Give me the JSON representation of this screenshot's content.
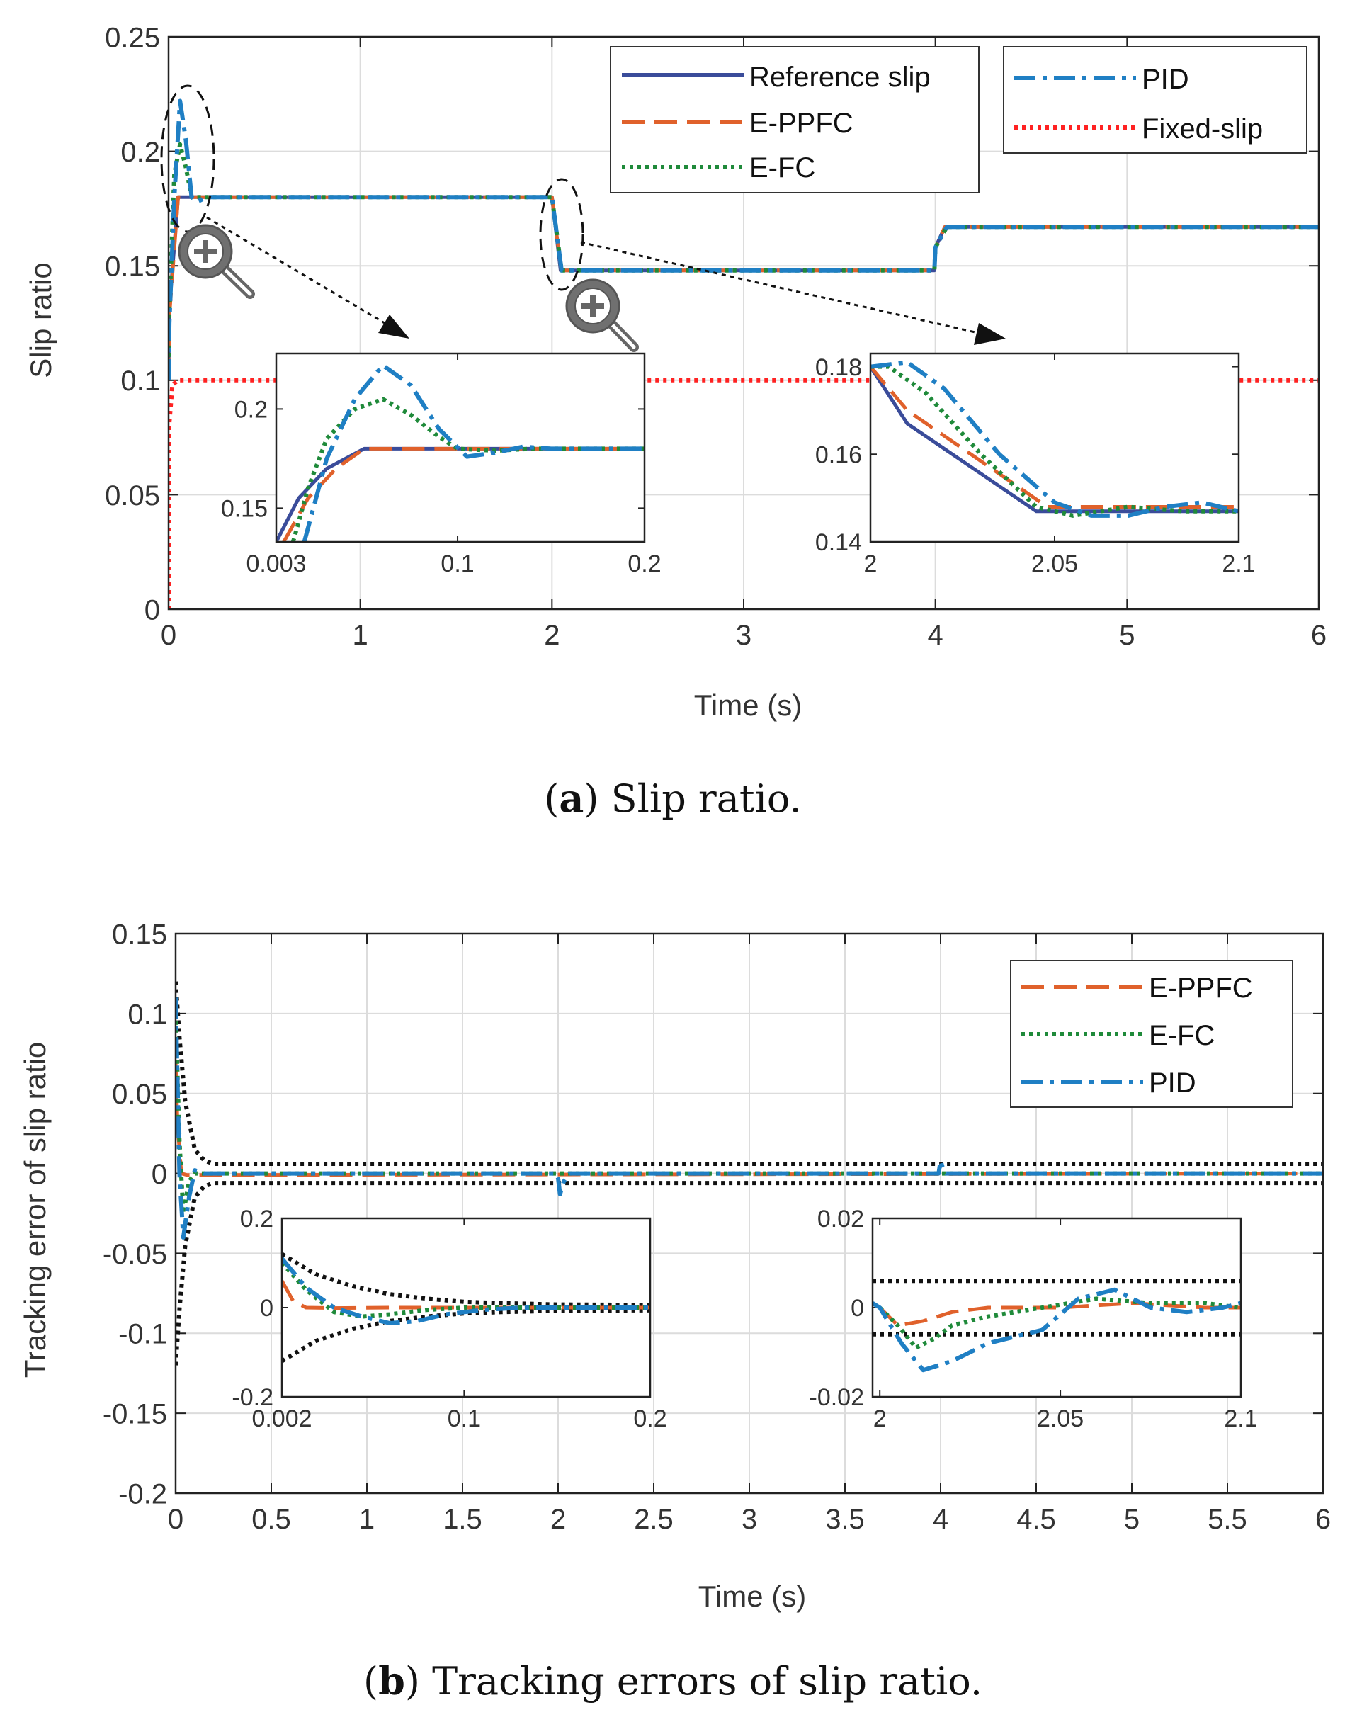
{
  "colors": {
    "reference": "#3a4c9a",
    "eppfc": "#e0612b",
    "efc": "#1f8a3a",
    "pid": "#1f7fc4",
    "fixed": "#ff2222",
    "bound": "#111111",
    "grid": "#dcdcdc",
    "axis": "#222222"
  },
  "caption_a": {
    "label": "a",
    "text": "Slip ratio."
  },
  "caption_b": {
    "label": "b",
    "text": "Tracking errors of slip ratio."
  },
  "chart_data": [
    {
      "id": "slip_main",
      "type": "line",
      "xlabel": "Time (s)",
      "ylabel": "Slip ratio",
      "xlim": [
        0,
        6
      ],
      "ylim": [
        0,
        0.25
      ],
      "xticks": [
        "0",
        "1",
        "2",
        "3",
        "4",
        "5",
        "6"
      ],
      "yticks": [
        "0",
        "0.05",
        "0.1",
        "0.15",
        "0.2",
        "0.25"
      ],
      "grid": true,
      "legend_left": [
        "Reference slip",
        "E-PPFC",
        "E-FC"
      ],
      "legend_right": [
        "PID",
        "Fixed-slip"
      ],
      "series": [
        {
          "name": "Reference slip",
          "key": "reference",
          "x": [
            0,
            0.003,
            0.05,
            1.995,
            2.0,
            2.045,
            3.995,
            4.0,
            4.05,
            6
          ],
          "y": [
            0.1,
            0.13,
            0.18,
            0.18,
            0.18,
            0.148,
            0.148,
            0.158,
            0.167,
            0.167
          ]
        },
        {
          "name": "E-PPFC",
          "key": "eppfc",
          "x": [
            0,
            0.004,
            0.05,
            1.995,
            2.0,
            2.048,
            3.995,
            4.0,
            4.05,
            6
          ],
          "y": [
            0.1,
            0.128,
            0.18,
            0.18,
            0.18,
            0.148,
            0.148,
            0.158,
            0.167,
            0.167
          ]
        },
        {
          "name": "E-FC",
          "key": "efc",
          "x": [
            0,
            0.004,
            0.03,
            0.06,
            0.09,
            0.12,
            0.2,
            1.995,
            2.0,
            2.05,
            3.995,
            4.0,
            4.06,
            6
          ],
          "y": [
            0.1,
            0.13,
            0.19,
            0.203,
            0.193,
            0.18,
            0.18,
            0.18,
            0.18,
            0.148,
            0.148,
            0.158,
            0.167,
            0.167
          ]
        },
        {
          "name": "PID",
          "key": "pid",
          "x": [
            0,
            0.004,
            0.03,
            0.06,
            0.09,
            0.12,
            0.15,
            0.2,
            1.995,
            2.0,
            2.05,
            3.995,
            4.0,
            4.06,
            6
          ],
          "y": [
            0.1,
            0.125,
            0.18,
            0.222,
            0.205,
            0.18,
            0.178,
            0.18,
            0.18,
            0.18,
            0.148,
            0.148,
            0.158,
            0.167,
            0.167
          ]
        },
        {
          "name": "Fixed-slip",
          "key": "fixed",
          "x": [
            0,
            0.003,
            0.02,
            0.05,
            6
          ],
          "y": [
            0,
            0.08,
            0.098,
            0.1,
            0.1
          ]
        }
      ]
    },
    {
      "id": "slip_inset_1",
      "type": "line",
      "xlim": [
        0.003,
        0.2
      ],
      "ylim": [
        0.133,
        0.228
      ],
      "xticks": [
        "0.003",
        "0.1",
        "0.2"
      ],
      "yticks": [
        "0.15",
        "0.2"
      ],
      "series": [
        {
          "name": "Reference slip",
          "key": "reference",
          "x": [
            0.003,
            0.015,
            0.03,
            0.05,
            0.2
          ],
          "y": [
            0.133,
            0.155,
            0.17,
            0.18,
            0.18
          ]
        },
        {
          "name": "E-PPFC",
          "key": "eppfc",
          "x": [
            0.007,
            0.02,
            0.035,
            0.05,
            0.2
          ],
          "y": [
            0.133,
            0.155,
            0.17,
            0.18,
            0.18
          ]
        },
        {
          "name": "E-FC",
          "key": "efc",
          "x": [
            0.012,
            0.02,
            0.03,
            0.045,
            0.06,
            0.075,
            0.09,
            0.1,
            0.12,
            0.14,
            0.16,
            0.18,
            0.2
          ],
          "y": [
            0.133,
            0.16,
            0.185,
            0.2,
            0.205,
            0.197,
            0.186,
            0.18,
            0.179,
            0.18,
            0.18,
            0.18,
            0.18
          ]
        },
        {
          "name": "PID",
          "key": "pid",
          "x": [
            0.018,
            0.03,
            0.045,
            0.06,
            0.075,
            0.09,
            0.105,
            0.12,
            0.135,
            0.15,
            0.17,
            0.2
          ],
          "y": [
            0.133,
            0.175,
            0.205,
            0.222,
            0.212,
            0.19,
            0.176,
            0.178,
            0.181,
            0.18,
            0.18,
            0.18
          ]
        }
      ]
    },
    {
      "id": "slip_inset_2",
      "type": "line",
      "xlim": [
        2.0,
        2.1
      ],
      "ylim": [
        0.14,
        0.183
      ],
      "xticks": [
        "2",
        "2.05",
        "2.1"
      ],
      "yticks": [
        "0.14",
        "0.16",
        "0.18"
      ],
      "series": [
        {
          "name": "Reference slip",
          "key": "reference",
          "x": [
            2.0,
            2.01,
            2.045,
            2.1
          ],
          "y": [
            0.18,
            0.167,
            0.147,
            0.147
          ]
        },
        {
          "name": "E-PPFC",
          "key": "eppfc",
          "x": [
            2.0,
            2.01,
            2.048,
            2.1
          ],
          "y": [
            0.18,
            0.17,
            0.148,
            0.148
          ]
        },
        {
          "name": "E-FC",
          "key": "efc",
          "x": [
            2.0,
            2.005,
            2.015,
            2.03,
            2.045,
            2.055,
            2.07,
            2.085,
            2.1
          ],
          "y": [
            0.18,
            0.18,
            0.174,
            0.16,
            0.148,
            0.146,
            0.148,
            0.147,
            0.147
          ]
        },
        {
          "name": "PID",
          "key": "pid",
          "x": [
            2.0,
            2.01,
            2.02,
            2.035,
            2.05,
            2.06,
            2.07,
            2.08,
            2.09,
            2.1
          ],
          "y": [
            0.18,
            0.181,
            0.175,
            0.16,
            0.149,
            0.146,
            0.146,
            0.148,
            0.149,
            0.147
          ]
        }
      ]
    },
    {
      "id": "error_main",
      "type": "line",
      "xlabel": "Time (s)",
      "ylabel": "Tracking error of slip ratio",
      "xlim": [
        0,
        6
      ],
      "ylim": [
        -0.2,
        0.15
      ],
      "xticks": [
        "0",
        "0.5",
        "1",
        "1.5",
        "2",
        "2.5",
        "3",
        "3.5",
        "4",
        "4.5",
        "5",
        "5.5",
        "6"
      ],
      "yticks": [
        "-0.2",
        "-0.15",
        "-0.1",
        "-0.05",
        "0",
        "0.05",
        "0.1",
        "0.15"
      ],
      "grid": true,
      "legend": [
        "E-PPFC",
        "E-FC",
        "PID"
      ],
      "series": [
        {
          "name": "Upper bound",
          "key": "bound",
          "x": [
            0,
            0.02,
            0.05,
            0.1,
            0.15,
            0.2,
            6
          ],
          "y": [
            0.12,
            0.085,
            0.045,
            0.015,
            0.008,
            0.006,
            0.006
          ]
        },
        {
          "name": "Lower bound",
          "key": "bound",
          "x": [
            0,
            0.02,
            0.05,
            0.1,
            0.15,
            0.2,
            6
          ],
          "y": [
            -0.12,
            -0.085,
            -0.045,
            -0.015,
            -0.008,
            -0.006,
            -0.006
          ]
        },
        {
          "name": "E-PPFC",
          "key": "eppfc",
          "x": [
            0,
            0.01,
            0.03,
            0.06,
            6
          ],
          "y": [
            0.07,
            0.03,
            0.0,
            -0.001,
            0
          ]
        },
        {
          "name": "E-FC",
          "key": "efc",
          "x": [
            0,
            0.02,
            0.04,
            0.07,
            0.1,
            6
          ],
          "y": [
            0.1,
            0.02,
            -0.025,
            -0.005,
            0,
            0
          ]
        },
        {
          "name": "PID",
          "key": "pid",
          "x": [
            0,
            0.02,
            0.04,
            0.07,
            0.1,
            0.15,
            1.99,
            2.0,
            2.01,
            2.03,
            2.06,
            3.99,
            4.0,
            4.01,
            4.03,
            6
          ],
          "y": [
            0.11,
            0.0,
            -0.04,
            -0.015,
            0.002,
            0,
            0,
            -0.003,
            -0.013,
            -0.005,
            0,
            0,
            0.008,
            0.004,
            0.0,
            0
          ]
        }
      ]
    },
    {
      "id": "error_inset_1",
      "type": "line",
      "xlim": [
        0.002,
        0.2
      ],
      "ylim": [
        -0.2,
        0.2
      ],
      "xticks": [
        "0.002",
        "0.1",
        "0.2"
      ],
      "yticks": [
        "-0.2",
        "0",
        "0.2"
      ],
      "series": [
        {
          "name": "Upper bound",
          "key": "bound",
          "x": [
            0.002,
            0.02,
            0.04,
            0.06,
            0.08,
            0.1,
            0.12,
            0.15,
            0.2
          ],
          "y": [
            0.12,
            0.075,
            0.048,
            0.03,
            0.02,
            0.013,
            0.01,
            0.007,
            0.006
          ]
        },
        {
          "name": "Lower bound",
          "key": "bound",
          "x": [
            0.002,
            0.02,
            0.04,
            0.06,
            0.08,
            0.1,
            0.12,
            0.15,
            0.2
          ],
          "y": [
            -0.12,
            -0.075,
            -0.048,
            -0.03,
            -0.02,
            -0.013,
            -0.01,
            -0.007,
            -0.006
          ]
        },
        {
          "name": "E-PPFC",
          "key": "eppfc",
          "x": [
            0.002,
            0.008,
            0.015,
            0.03,
            0.06,
            0.2
          ],
          "y": [
            0.06,
            0.015,
            0.0,
            -0.001,
            0,
            0
          ]
        },
        {
          "name": "E-FC",
          "key": "efc",
          "x": [
            0.002,
            0.015,
            0.03,
            0.045,
            0.06,
            0.08,
            0.1,
            0.2
          ],
          "y": [
            0.1,
            0.04,
            -0.01,
            -0.02,
            -0.015,
            -0.005,
            0,
            0
          ]
        },
        {
          "name": "PID",
          "key": "pid",
          "x": [
            0.002,
            0.015,
            0.03,
            0.045,
            0.06,
            0.075,
            0.09,
            0.11,
            0.13,
            0.2
          ],
          "y": [
            0.11,
            0.045,
            0.0,
            -0.02,
            -0.035,
            -0.03,
            -0.015,
            -0.005,
            0,
            0
          ]
        }
      ]
    },
    {
      "id": "error_inset_2",
      "type": "line",
      "xlim": [
        1.998,
        2.1
      ],
      "ylim": [
        -0.02,
        0.02
      ],
      "xticks": [
        "2",
        "2.05",
        "2.1"
      ],
      "yticks": [
        "-0.02",
        "0",
        "0.02"
      ],
      "series": [
        {
          "name": "Upper bound",
          "key": "bound",
          "x": [
            1.998,
            2.1
          ],
          "y": [
            0.006,
            0.006
          ]
        },
        {
          "name": "Lower bound",
          "key": "bound",
          "x": [
            1.998,
            2.1
          ],
          "y": [
            -0.006,
            -0.006
          ]
        },
        {
          "name": "E-PPFC",
          "key": "eppfc",
          "x": [
            2.0,
            2.005,
            2.012,
            2.02,
            2.03,
            2.05,
            2.07,
            2.09,
            2.1
          ],
          "y": [
            0,
            -0.004,
            -0.003,
            -0.001,
            0,
            0,
            0.001,
            0,
            0
          ]
        },
        {
          "name": "E-FC",
          "key": "efc",
          "x": [
            2.0,
            2.005,
            2.01,
            2.015,
            2.02,
            2.03,
            2.045,
            2.06,
            2.075,
            2.09,
            2.1
          ],
          "y": [
            0,
            -0.004,
            -0.009,
            -0.007,
            -0.004,
            -0.002,
            0.0,
            0.002,
            0.001,
            0.001,
            0.0
          ]
        },
        {
          "name": "PID",
          "key": "pid",
          "x": [
            1.998,
            2.0,
            2.006,
            2.012,
            2.02,
            2.03,
            2.045,
            2.055,
            2.065,
            2.075,
            2.085,
            2.095,
            2.1
          ],
          "y": [
            0.001,
            0.0,
            -0.008,
            -0.014,
            -0.012,
            -0.008,
            -0.005,
            0.002,
            0.004,
            0.0,
            -0.001,
            0.0,
            0.001
          ]
        }
      ]
    }
  ]
}
